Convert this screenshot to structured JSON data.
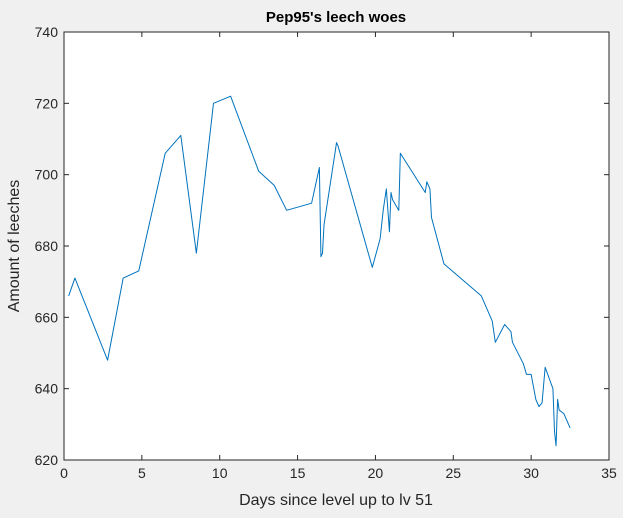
{
  "chart_data": {
    "type": "line",
    "title": "Pep95's leech woes",
    "xlabel": "Days since level up to lv 51",
    "ylabel": "Amount of leeches",
    "xlim": [
      0,
      35
    ],
    "ylim": [
      620,
      740
    ],
    "xticks": [
      0,
      5,
      10,
      15,
      20,
      25,
      30,
      35
    ],
    "yticks": [
      620,
      640,
      660,
      680,
      700,
      720,
      740
    ],
    "grid": false,
    "colors": {
      "line": "#0072bd",
      "axes_bg": "#ffffff",
      "figure_bg": "#f0f0f0",
      "axis": "#262626"
    },
    "series": [
      {
        "x": [
          0.3,
          0.7,
          2.8,
          3.8,
          4.8,
          6.5,
          7.5,
          8.5,
          9.6,
          10.7,
          12.5,
          13.5,
          14.3,
          15.9,
          16.4,
          16.5,
          16.6,
          16.7,
          17.4,
          17.5,
          17.6,
          19.8,
          20.3,
          20.5,
          20.7,
          20.9,
          21.0,
          21.1,
          21.5,
          21.6,
          23.2,
          23.3,
          23.4,
          23.5,
          23.6,
          24.4,
          26.8,
          27.5,
          27.7,
          28.3,
          28.5,
          28.7,
          28.8,
          29.5,
          29.7,
          30.0,
          30.3,
          30.5,
          30.7,
          30.9,
          31.4,
          31.5,
          31.6,
          31.7,
          31.8,
          32.1,
          32.5
        ],
        "y": [
          666,
          671,
          648,
          671,
          673,
          706,
          711,
          678,
          720,
          722,
          701,
          697,
          690,
          692,
          702,
          677,
          678,
          686,
          706,
          709,
          708,
          674,
          682,
          690,
          696,
          684,
          695,
          693,
          690,
          706,
          695,
          698,
          697,
          696,
          688,
          675,
          666,
          659,
          653,
          658,
          657,
          656,
          653,
          647,
          644,
          644,
          637,
          635,
          636,
          646,
          640,
          628,
          624,
          637,
          634,
          633,
          629
        ]
      }
    ]
  }
}
